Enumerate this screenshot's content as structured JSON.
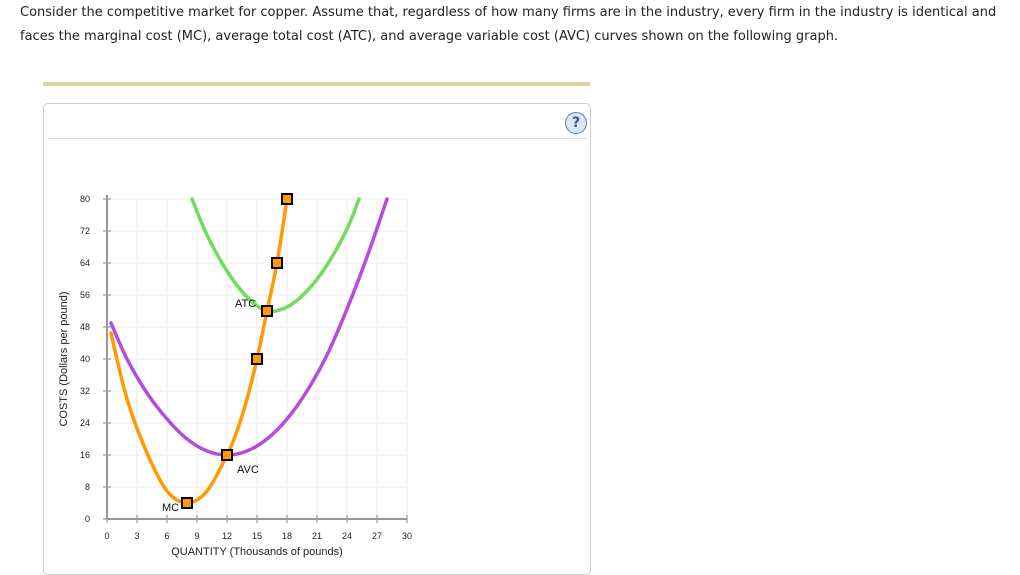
{
  "prompt": {
    "line1": "Consider the competitive market for copper. Assume that, regardless of how many firms are in the industry, every firm in the industry is identical and",
    "line2": "faces the marginal cost (MC), average total cost (ATC), and average variable cost (AVC) curves shown on the following graph."
  },
  "help_icon": "?",
  "colors": {
    "mc": "#ff9a00",
    "atc": "#6fdc5c",
    "avc": "#b44ddb",
    "axis": "#999999",
    "grid": "#f2f2f2",
    "rule": "#ddd2a4",
    "marker_fill": "#ff9a00",
    "marker_stroke": "#000000"
  },
  "chart_data": {
    "type": "line",
    "title": "",
    "xlabel": "QUANTITY (Thousands of pounds)",
    "ylabel": "COSTS (Dollars per pound)",
    "xlim": [
      0,
      30
    ],
    "ylim": [
      0,
      80
    ],
    "x_ticks": [
      0,
      3,
      6,
      9,
      12,
      15,
      18,
      21,
      24,
      27,
      30
    ],
    "y_ticks": [
      0,
      8,
      16,
      24,
      32,
      40,
      48,
      56,
      64,
      72,
      80
    ],
    "grid": true,
    "legend": "inline labels",
    "series": [
      {
        "name": "MC",
        "color": "#ff9a00",
        "points": [
          [
            0.4,
            46.5
          ],
          [
            2,
            30
          ],
          [
            4,
            16.5
          ],
          [
            6,
            7
          ],
          [
            8,
            4
          ],
          [
            10,
            7
          ],
          [
            12,
            16
          ],
          [
            13,
            22
          ],
          [
            14,
            30
          ],
          [
            15,
            40
          ],
          [
            16,
            52
          ],
          [
            17,
            64
          ],
          [
            18,
            80
          ]
        ],
        "markers": [
          [
            8,
            4
          ],
          [
            12,
            16
          ],
          [
            15,
            40
          ],
          [
            16,
            52
          ],
          [
            17,
            64
          ],
          [
            18,
            80
          ]
        ],
        "label_at": [
          5.5,
          3
        ]
      },
      {
        "name": "ATC",
        "color": "#6fdc5c",
        "points": [
          [
            8.5,
            80
          ],
          [
            10,
            71
          ],
          [
            12,
            62
          ],
          [
            14,
            55.5
          ],
          [
            16,
            52
          ],
          [
            18,
            53
          ],
          [
            20,
            57
          ],
          [
            22,
            63.5
          ],
          [
            24,
            72.5
          ],
          [
            25.2,
            80
          ]
        ],
        "markers": [
          [
            16,
            52
          ]
        ],
        "label_at": [
          12.8,
          54
        ]
      },
      {
        "name": "AVC",
        "color": "#b44ddb",
        "points": [
          [
            0.4,
            49
          ],
          [
            2,
            40
          ],
          [
            4,
            31.5
          ],
          [
            6,
            25
          ],
          [
            8,
            20
          ],
          [
            10,
            17
          ],
          [
            12,
            16
          ],
          [
            14,
            17
          ],
          [
            16,
            20
          ],
          [
            18,
            25
          ],
          [
            20,
            32
          ],
          [
            22,
            41
          ],
          [
            24,
            52.5
          ],
          [
            26,
            65.5
          ],
          [
            28,
            80
          ]
        ],
        "markers": [
          [
            12,
            16
          ]
        ],
        "label_at": [
          13,
          12.5
        ]
      }
    ]
  }
}
